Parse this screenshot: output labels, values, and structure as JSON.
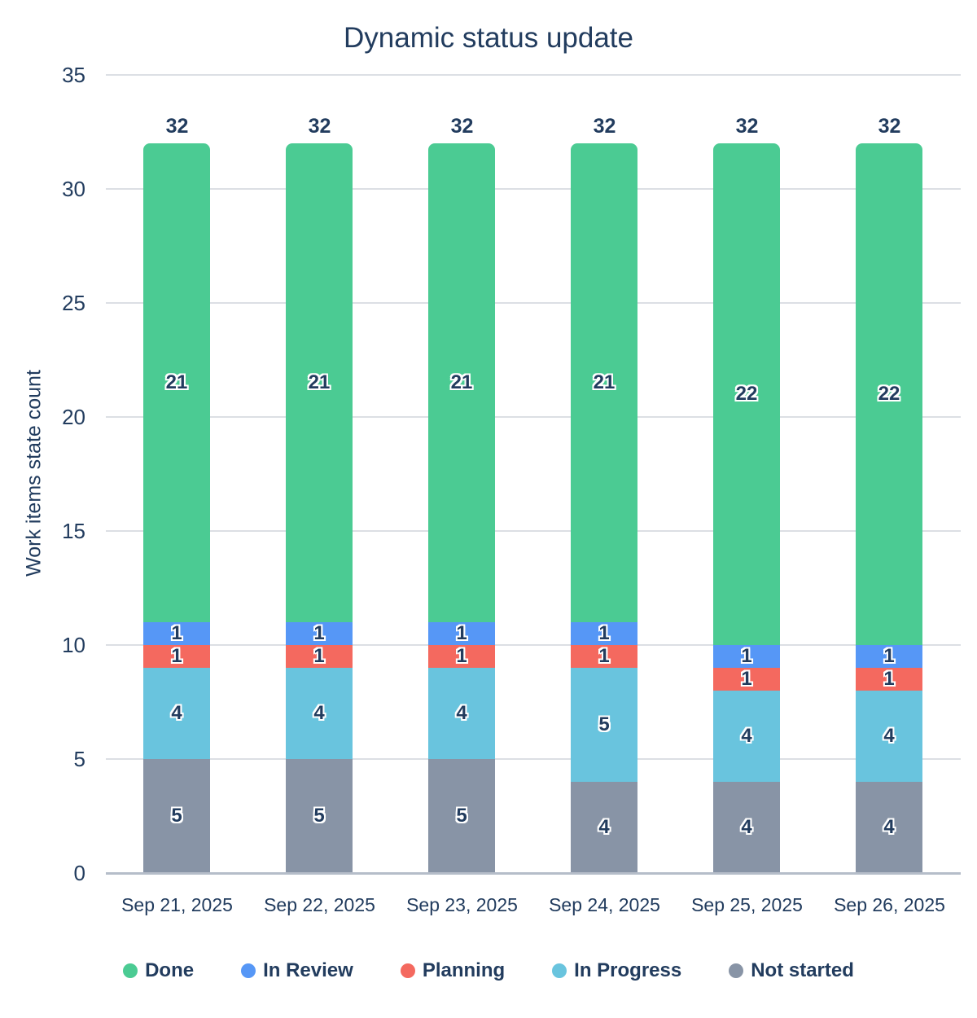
{
  "colors": {
    "text": "#223c5e",
    "grid": "#dcdfe4",
    "axis": "#b5bdc9",
    "background": "#ffffff"
  },
  "chart_data": {
    "type": "bar",
    "stacked": true,
    "title": "Dynamic status update",
    "xlabel": "",
    "ylabel": "Work items state count",
    "categories": [
      "Sep 21, 2025",
      "Sep 22, 2025",
      "Sep 23, 2025",
      "Sep 24, 2025",
      "Sep 25, 2025",
      "Sep 26, 2025"
    ],
    "series": [
      {
        "name": "Done",
        "color": "#4bcb93",
        "values": [
          21,
          21,
          21,
          21,
          22,
          22
        ]
      },
      {
        "name": "In Review",
        "color": "#5697f6",
        "values": [
          1,
          1,
          1,
          1,
          1,
          1
        ]
      },
      {
        "name": "Planning",
        "color": "#f4695f",
        "values": [
          1,
          1,
          1,
          1,
          1,
          1
        ]
      },
      {
        "name": "In Progress",
        "color": "#69c4de",
        "values": [
          4,
          4,
          4,
          5,
          4,
          4
        ]
      },
      {
        "name": "Not started",
        "color": "#8894a6",
        "values": [
          5,
          5,
          5,
          4,
          4,
          4
        ]
      }
    ],
    "stack_order_bottom_to_top": [
      "Not started",
      "In Progress",
      "Planning",
      "In Review",
      "Done"
    ],
    "totals": [
      32,
      32,
      32,
      32,
      32,
      32
    ],
    "y_ticks": [
      0,
      5,
      10,
      15,
      20,
      25,
      30,
      35
    ],
    "ylim": [
      0,
      35
    ],
    "grid": true,
    "legend_position": "bottom"
  }
}
